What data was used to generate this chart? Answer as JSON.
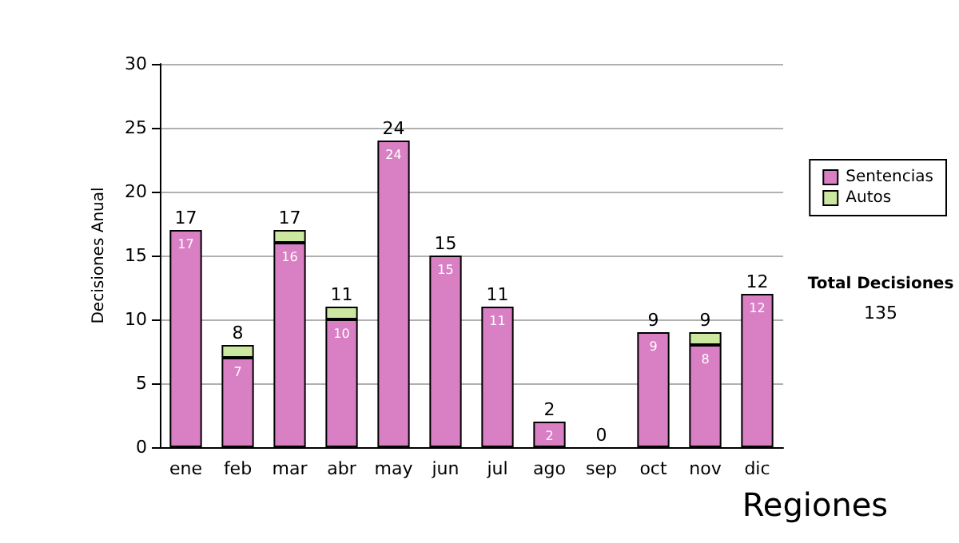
{
  "chart_data": {
    "type": "bar",
    "stacked": true,
    "ylabel": "Decisiones Anual",
    "categories": [
      "ene",
      "feb",
      "mar",
      "abr",
      "may",
      "jun",
      "jul",
      "ago",
      "sep",
      "oct",
      "nov",
      "dic"
    ],
    "series": [
      {
        "name": "Sentencias",
        "color": "#d97fc4",
        "values": [
          17,
          7,
          16,
          10,
          24,
          15,
          11,
          2,
          0,
          9,
          8,
          12
        ],
        "value_labels": [
          "17",
          "7",
          "16",
          "10",
          "24",
          "15",
          "11",
          "2",
          null,
          "9",
          "8",
          "12"
        ]
      },
      {
        "name": "Autos",
        "color": "#cce8a0",
        "values": [
          0,
          1,
          1,
          1,
          0,
          0,
          0,
          0,
          0,
          0,
          1,
          0
        ]
      }
    ],
    "totals": [
      "17",
      "8",
      "17",
      "11",
      "24",
      "15",
      "11",
      "2",
      "0",
      "9",
      "9",
      "12"
    ],
    "ylim": [
      0,
      30
    ],
    "yticks": [
      0,
      5,
      10,
      15,
      20,
      25,
      30
    ],
    "grid": "y",
    "legend": "right",
    "annotations": [
      "Total Decisiones",
      "135",
      "Regiones"
    ]
  }
}
